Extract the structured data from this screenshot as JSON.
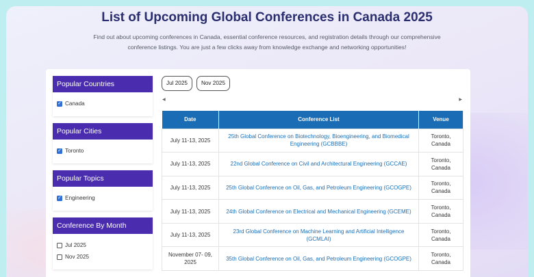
{
  "page": {
    "title": "List of Upcoming Global Conferences in Canada 2025",
    "subtitle": "Find out about upcoming conferences in Canada, essential conference resources, and registration details through our comprehensive conference listings. You are just a few clicks away from knowledge exchange and networking opportunities!"
  },
  "sidebar": {
    "panels": [
      {
        "heading": "Popular Countries",
        "options": [
          {
            "label": "Canada",
            "checked": true
          }
        ]
      },
      {
        "heading": "Popular Cities",
        "options": [
          {
            "label": "Toronto",
            "checked": true
          }
        ]
      },
      {
        "heading": "Popular Topics",
        "options": [
          {
            "label": "Engineering",
            "checked": true
          }
        ]
      },
      {
        "heading": "Conference By Month",
        "options": [
          {
            "label": "Jul 2025",
            "checked": false
          },
          {
            "label": "Nov 2025",
            "checked": false
          }
        ]
      }
    ]
  },
  "month_tabs": [
    "Jul 2025",
    "Nov 2025"
  ],
  "table": {
    "headers": [
      "Date",
      "Conference List",
      "Venue"
    ],
    "rows": [
      {
        "date": "July 11-13, 2025",
        "conference": "25th Global Conference on Biotechnology, Bioengineering, and Biomedical Engineering (GCBBBE)",
        "venue": "Toronto, Canada"
      },
      {
        "date": "July 11-13, 2025",
        "conference": "22nd Global Conference on Civil and Architectural Engineering (GCCAE)",
        "venue": "Toronto, Canada"
      },
      {
        "date": "July 11-13, 2025",
        "conference": "25th Global Conference on Oil, Gas, and Petroleum Engineering (GCOGPE)",
        "venue": "Toronto, Canada"
      },
      {
        "date": "July 11-13, 2025",
        "conference": "24th Global Conference on Electrical and Mechanical Engineering (GCEME)",
        "venue": "Toronto, Canada"
      },
      {
        "date": "July 11-13, 2025",
        "conference": "23rd Global Conference on Machine Learning and Artificial Intelligence (GCMLAI)",
        "venue": "Toronto, Canada"
      },
      {
        "date": "November 07- 09, 2025",
        "conference": "35th Global Conference on Oil, Gas, and Petroleum Engineering (GCOGPE)",
        "venue": "Toronto, Canada"
      }
    ]
  },
  "icons": {
    "check": "checkmark-icon",
    "scroll_left": "triangle-left-icon",
    "scroll_right": "triangle-right-icon"
  },
  "colors": {
    "panel_header": "#4a2dae",
    "table_header": "#1a6db5",
    "link": "#1a6db5",
    "title": "#2a2e6e"
  }
}
